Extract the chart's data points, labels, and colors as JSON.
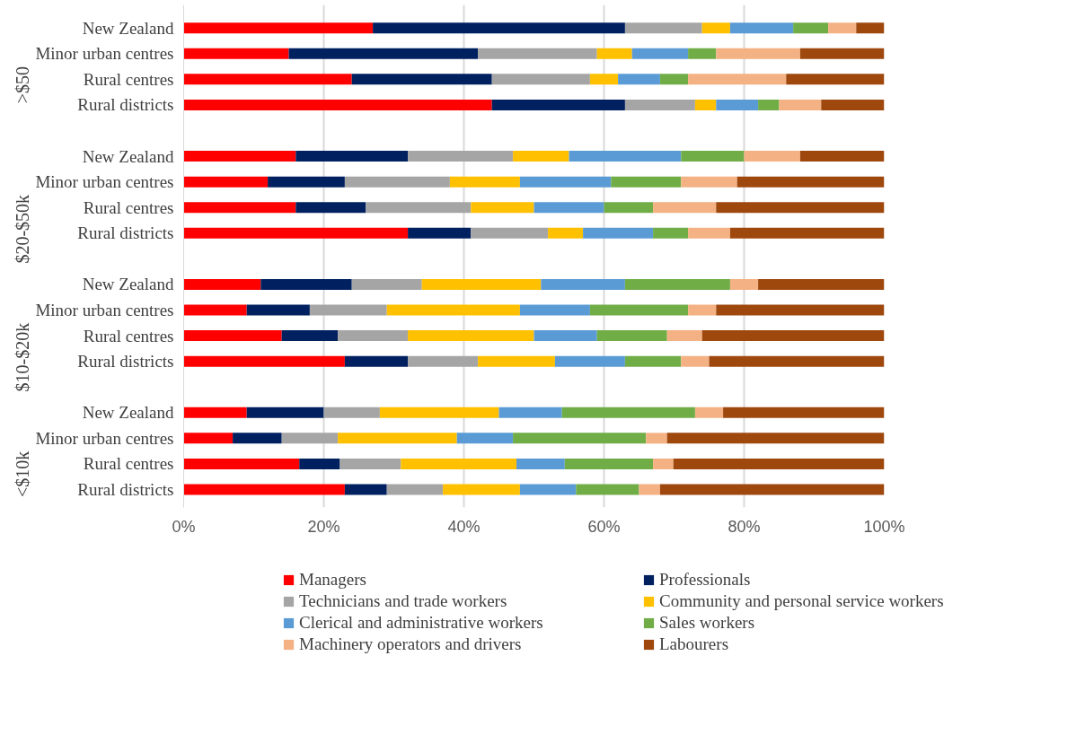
{
  "chart_data": {
    "type": "bar",
    "orientation": "horizontal",
    "stacked": true,
    "categories": [
      "New Zealand",
      "Minor urban centres",
      "Rural centres",
      "Rural districts",
      "New Zealand",
      "Minor urban centres",
      "Rural centres",
      "Rural districts",
      "New Zealand",
      "Minor urban centres",
      "Rural centres",
      "Rural districts",
      "New Zealand",
      "Minor urban centres",
      "Rural centres",
      "Rural districts"
    ],
    "annotations": [
      ">$50",
      "$20-$50k",
      "$10-$20k",
      "<$10k"
    ],
    "series": [
      {
        "name": "Managers",
        "color": "#ff0000",
        "values": [
          27,
          15,
          24,
          44,
          16,
          12,
          16,
          32,
          11,
          9,
          14,
          23,
          9,
          7,
          16.5,
          23
        ]
      },
      {
        "name": "Professionals",
        "color": "#002060",
        "values": [
          36,
          27,
          20,
          19,
          16,
          11,
          10,
          9,
          13,
          9,
          8,
          9,
          11,
          7,
          5.8,
          6
        ]
      },
      {
        "name": "Technicians and trade workers",
        "color": "#a5a5a5",
        "values": [
          11,
          17,
          14,
          10,
          15,
          15,
          15,
          11,
          10,
          11,
          10,
          10,
          8,
          8,
          8.7,
          8
        ]
      },
      {
        "name": "Community and personal service workers",
        "color": "#ffc000",
        "values": [
          4,
          5,
          4,
          3,
          8,
          10,
          9,
          5,
          17,
          19,
          18,
          11,
          17,
          17,
          16.5,
          11
        ]
      },
      {
        "name": "Clerical and administrative workers",
        "color": "#5b9bd5",
        "values": [
          9,
          8,
          6,
          6,
          16,
          13,
          10,
          10,
          12,
          10,
          9,
          10,
          9,
          8,
          6.9,
          8
        ]
      },
      {
        "name": "Sales workers",
        "color": "#70ad47",
        "values": [
          5,
          4,
          4,
          3,
          9,
          10,
          7,
          5,
          15,
          14,
          10,
          8,
          19,
          19,
          12.6,
          9
        ]
      },
      {
        "name": "Machinery operators and drivers",
        "color": "#f4b183",
        "values": [
          4,
          12,
          14,
          6,
          8,
          8,
          9,
          6,
          4,
          4,
          5,
          4,
          4,
          3,
          2.9,
          3
        ]
      },
      {
        "name": "Labourers",
        "color": "#9e480e",
        "values": [
          4,
          12,
          14,
          9,
          12,
          21,
          24,
          22,
          18,
          24,
          26,
          25,
          23,
          31,
          30.1,
          32
        ]
      }
    ],
    "xlim": [
      0,
      100
    ],
    "xticks": [
      {
        "value": 0,
        "label": "0%"
      },
      {
        "value": 20,
        "label": "20%"
      },
      {
        "value": 40,
        "label": "40%"
      },
      {
        "value": 60,
        "label": "60%"
      },
      {
        "value": 80,
        "label": "80%"
      },
      {
        "value": 100,
        "label": "100%"
      }
    ],
    "grid": "x",
    "legend": "bottom"
  }
}
